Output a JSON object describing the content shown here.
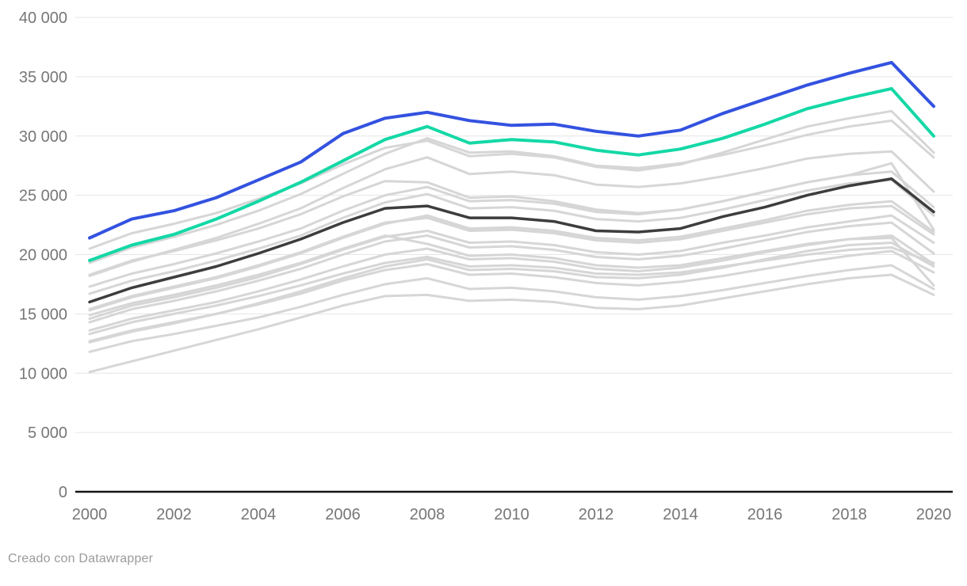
{
  "footer": {
    "credit": "Creado con Datawrapper"
  },
  "chart_data": {
    "type": "line",
    "title": "",
    "xlabel": "",
    "ylabel": "",
    "legend": "none",
    "grid": "horizontal",
    "xlim": [
      2000,
      2020
    ],
    "ylim": [
      0,
      40000
    ],
    "x": [
      2000,
      2001,
      2002,
      2003,
      2004,
      2005,
      2006,
      2007,
      2008,
      2009,
      2010,
      2011,
      2012,
      2013,
      2014,
      2015,
      2016,
      2017,
      2018,
      2019,
      2020
    ],
    "x_ticks": [
      2000,
      2002,
      2004,
      2006,
      2008,
      2010,
      2012,
      2014,
      2016,
      2018,
      2020
    ],
    "x_tick_labels": [
      "2000",
      "2002",
      "2004",
      "2006",
      "2008",
      "2010",
      "2012",
      "2014",
      "2016",
      "2018",
      "2020"
    ],
    "y_ticks": [
      0,
      5000,
      10000,
      15000,
      20000,
      25000,
      30000,
      35000,
      40000
    ],
    "y_tick_labels": [
      "0",
      "5 000",
      "10 000",
      "15 000",
      "20 000",
      "25 000",
      "30 000",
      "35 000",
      "40 000"
    ],
    "palette": {
      "highlight_blue": "#3352e0",
      "highlight_green": "#14d8a6",
      "emphasis_dark": "#3d3d3d",
      "context_gray": "#d6d6d6",
      "gridline": "#e6e6e6",
      "zero_axis": "#151515",
      "axis_text": "#767676",
      "credit_text": "#9b9b9b"
    },
    "series": [
      {
        "id": "gray-1",
        "role": "context",
        "color": "#d6d6d6",
        "values": [
          20500,
          21800,
          22600,
          23500,
          24700,
          26000,
          27600,
          29000,
          29600,
          28300,
          28500,
          28200,
          27400,
          27100,
          27600,
          28600,
          29700,
          30800,
          31500,
          32100,
          28600
        ]
      },
      {
        "id": "gray-2",
        "role": "context",
        "color": "#d6d6d6",
        "values": [
          19300,
          20600,
          21500,
          22500,
          23700,
          25100,
          26800,
          28500,
          29800,
          28600,
          28700,
          28300,
          27500,
          27300,
          27700,
          28400,
          29200,
          30100,
          30800,
          31300,
          28200
        ]
      },
      {
        "id": "gray-3",
        "role": "context",
        "color": "#d6d6d6",
        "values": [
          18200,
          19400,
          20400,
          21400,
          22600,
          23900,
          25600,
          27200,
          28200,
          26800,
          27000,
          26700,
          25900,
          25700,
          26000,
          26600,
          27300,
          28100,
          28500,
          28700,
          25300
        ]
      },
      {
        "id": "gray-4",
        "role": "context",
        "color": "#d6d6d6",
        "values": [
          18300,
          19500,
          20300,
          21200,
          22200,
          23400,
          24900,
          26200,
          26100,
          24800,
          24900,
          24500,
          23800,
          23500,
          23800,
          24500,
          25300,
          26100,
          26700,
          27700,
          22100
        ]
      },
      {
        "id": "gray-5",
        "role": "context",
        "color": "#d6d6d6",
        "values": [
          17300,
          18400,
          19200,
          20100,
          21100,
          22200,
          23700,
          25000,
          25700,
          24500,
          24600,
          24300,
          23600,
          23400,
          23800,
          24500,
          25300,
          26100,
          26700,
          27000,
          24000
        ]
      },
      {
        "id": "gray-6",
        "role": "context",
        "color": "#d6d6d6",
        "values": [
          16700,
          17800,
          18600,
          19500,
          20500,
          21600,
          23100,
          24400,
          25100,
          23900,
          24000,
          23700,
          23000,
          22800,
          23100,
          23800,
          24600,
          25400,
          26000,
          26300,
          23300
        ]
      },
      {
        "id": "gray-7",
        "role": "context",
        "color": "#d6d6d6",
        "values": [
          15300,
          16400,
          17200,
          18000,
          19000,
          20100,
          21400,
          22600,
          23300,
          22200,
          22300,
          22000,
          21400,
          21200,
          21500,
          22200,
          22900,
          23700,
          24200,
          24500,
          21900
        ]
      },
      {
        "id": "gray-8",
        "role": "context",
        "color": "#d6d6d6",
        "values": [
          15400,
          16500,
          17300,
          18100,
          19100,
          20200,
          21500,
          22700,
          23100,
          22000,
          22100,
          21800,
          21200,
          21000,
          21300,
          22000,
          22700,
          23400,
          23900,
          24100,
          21700
        ]
      },
      {
        "id": "gray-9",
        "role": "context",
        "color": "#d6d6d6",
        "values": [
          14600,
          15700,
          16400,
          17200,
          18100,
          19200,
          20400,
          21500,
          22000,
          21000,
          21100,
          20800,
          20200,
          20000,
          20300,
          21000,
          21600,
          22300,
          22800,
          23300,
          21000
        ]
      },
      {
        "id": "gray-10",
        "role": "context",
        "color": "#d6d6d6",
        "values": [
          14300,
          15400,
          16100,
          16900,
          17800,
          18800,
          20000,
          21100,
          21600,
          20600,
          20700,
          20400,
          19800,
          19600,
          19900,
          20500,
          21200,
          21900,
          22400,
          22700,
          20100
        ]
      },
      {
        "id": "gray-11",
        "role": "context",
        "color": "#d6d6d6",
        "values": [
          13600,
          14600,
          15300,
          16000,
          16900,
          17900,
          19000,
          20000,
          20500,
          19600,
          19700,
          19400,
          18800,
          18600,
          18900,
          19500,
          20200,
          20800,
          21300,
          21600,
          19200
        ]
      },
      {
        "id": "gray-12",
        "role": "context",
        "color": "#d6d6d6",
        "values": [
          14900,
          15900,
          16600,
          17400,
          18300,
          19300,
          20500,
          21600,
          20900,
          19900,
          20000,
          19700,
          19100,
          18900,
          19100,
          19700,
          20300,
          20900,
          21300,
          21400,
          17400
        ]
      },
      {
        "id": "gray-13",
        "role": "context",
        "color": "#d6d6d6",
        "values": [
          13300,
          14300,
          15000,
          15700,
          16500,
          17400,
          18400,
          19300,
          19800,
          19000,
          19100,
          18900,
          18400,
          18300,
          18500,
          19000,
          19500,
          20000,
          20400,
          20600,
          19300
        ]
      },
      {
        "id": "gray-14",
        "role": "context",
        "color": "#d6d6d6",
        "values": [
          12700,
          13600,
          14300,
          15000,
          15800,
          16700,
          17800,
          18700,
          19200,
          18300,
          18400,
          18100,
          17600,
          17400,
          17700,
          18200,
          18800,
          19400,
          19900,
          20300,
          18500
        ]
      },
      {
        "id": "gray-15",
        "role": "context",
        "color": "#d6d6d6",
        "values": [
          12600,
          13500,
          14200,
          15000,
          15900,
          16900,
          18000,
          19000,
          19600,
          18700,
          18800,
          18600,
          18100,
          18000,
          18300,
          18900,
          19600,
          20300,
          20800,
          21000,
          19000
        ]
      },
      {
        "id": "gray-16",
        "role": "context",
        "color": "#d6d6d6",
        "values": [
          11800,
          12700,
          13300,
          14000,
          14700,
          15600,
          16600,
          17500,
          18000,
          17100,
          17200,
          16900,
          16400,
          16200,
          16500,
          17000,
          17600,
          18200,
          18700,
          19100,
          17100
        ]
      },
      {
        "id": "gray-17",
        "role": "context",
        "color": "#d6d6d6",
        "values": [
          10100,
          11000,
          11900,
          12800,
          13700,
          14700,
          15700,
          16500,
          16600,
          16100,
          16200,
          16000,
          15500,
          15400,
          15700,
          16300,
          16900,
          17500,
          18000,
          18300,
          16600
        ]
      },
      {
        "id": "dark",
        "role": "emphasis",
        "color": "#3d3d3d",
        "values": [
          16000,
          17200,
          18100,
          19000,
          20100,
          21300,
          22700,
          23900,
          24100,
          23100,
          23100,
          22800,
          22000,
          21900,
          22200,
          23200,
          24000,
          25000,
          25800,
          26400,
          23600
        ]
      },
      {
        "id": "green",
        "role": "highlight",
        "color": "#14d8a6",
        "values": [
          19500,
          20800,
          21700,
          23000,
          24500,
          26100,
          27900,
          29700,
          30800,
          29400,
          29700,
          29500,
          28800,
          28400,
          28900,
          29800,
          31000,
          32300,
          33200,
          34000,
          30000
        ]
      },
      {
        "id": "blue",
        "role": "highlight",
        "color": "#3352e0",
        "values": [
          21400,
          23000,
          23700,
          24800,
          26300,
          27800,
          30200,
          31500,
          32000,
          31300,
          30900,
          31000,
          30400,
          30000,
          30500,
          31900,
          33100,
          34300,
          35300,
          36200,
          32500
        ]
      }
    ]
  }
}
